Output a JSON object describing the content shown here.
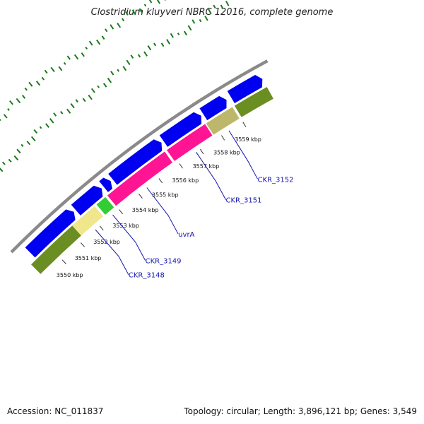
{
  "title": "Clostridium kluyveri NBRC 12016, complete genome",
  "footer": {
    "accession": "Accession: NC_011837",
    "summary": "Topology: circular; Length: 3,896,121 bp; Genes: 3,549"
  },
  "colors": {
    "backbone": "#8a8a8a",
    "forward_gene": "#0000f0",
    "gc_dots": "#1a7a1a",
    "label": "#1515b0"
  },
  "ticks": [
    {
      "kbp": 3550,
      "label": "3550 kbp"
    },
    {
      "kbp": 3551,
      "label": "3551 kbp"
    },
    {
      "kbp": 3552,
      "label": "3552 kbp"
    },
    {
      "kbp": 3553,
      "label": "3553 kbp"
    },
    {
      "kbp": 3554,
      "label": "3554 kbp"
    },
    {
      "kbp": 3555,
      "label": "3555 kbp"
    },
    {
      "kbp": 3556,
      "label": "3556 kbp"
    },
    {
      "kbp": 3557,
      "label": "3557 kbp"
    },
    {
      "kbp": 3558,
      "label": "3558 kbp"
    },
    {
      "kbp": 3559,
      "label": "3559 kbp"
    }
  ],
  "forward_genes": [
    {
      "start": 3549.3,
      "end": 3551.6
    },
    {
      "start": 3551.7,
      "end": 3553.0
    },
    {
      "start": 3553.1,
      "end": 3553.45
    },
    {
      "start": 3553.55,
      "end": 3555.9
    },
    {
      "start": 3556.0,
      "end": 3557.75
    },
    {
      "start": 3557.85,
      "end": 3558.9
    },
    {
      "start": 3559.1,
      "end": 3560.5
    }
  ],
  "reverse_genes": [
    {
      "start": 3549.0,
      "end": 3551.2,
      "color": "#6b8e23"
    },
    {
      "start": 3551.2,
      "end": 3552.35,
      "color": "#f0e68c",
      "label": "CKR_3148"
    },
    {
      "start": 3552.45,
      "end": 3552.9,
      "color": "#32cd32",
      "label": "CKR_3149"
    },
    {
      "start": 3553.0,
      "end": 3555.8,
      "color": "#ff1493",
      "label": "uvrA"
    },
    {
      "start": 3555.9,
      "end": 3557.7,
      "color": "#ff1493",
      "label": "CKR_3151"
    },
    {
      "start": 3557.75,
      "end": 3558.95,
      "color": "#bdb76b",
      "label": "CKR_3152"
    },
    {
      "start": 3559.05,
      "end": 3560.5,
      "color": "#6b8e23"
    }
  ]
}
